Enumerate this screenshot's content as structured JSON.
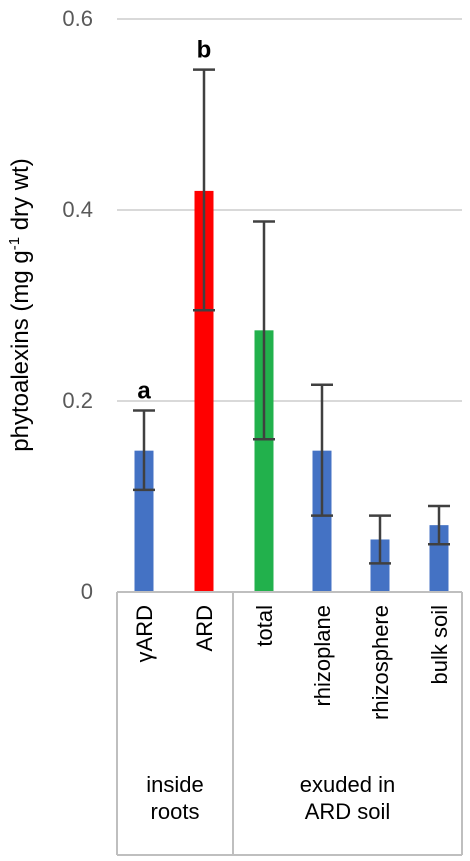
{
  "chart_data": {
    "type": "bar",
    "ylabel": {
      "main": "phytoalexins   (mg g",
      "sup": "-1",
      "tail": " dry wt)"
    },
    "ylim": [
      0,
      0.6
    ],
    "yticks": [
      "0",
      "0.2",
      "0.4",
      "0.6"
    ],
    "grid": true,
    "categories": [
      "γARD",
      "ARD",
      "total",
      "rhizoplane",
      "rhizosphere",
      "bulk soil"
    ],
    "values": [
      0.148,
      0.42,
      0.274,
      0.148,
      0.055,
      0.07
    ],
    "error_high": [
      0.19,
      0.547,
      0.388,
      0.217,
      0.08,
      0.09
    ],
    "error_low": [
      0.107,
      0.295,
      0.16,
      0.08,
      0.03,
      0.05
    ],
    "bar_colors": [
      "#4472c4",
      "#ff0000",
      "#22b14c",
      "#4472c4",
      "#4472c4",
      "#4472c4"
    ],
    "significance": [
      "a",
      "b",
      "",
      "",
      "",
      ""
    ],
    "groups": [
      {
        "lines": [
          "inside",
          "roots"
        ],
        "span": [
          0,
          1
        ]
      },
      {
        "lines": [
          "exuded in",
          "ARD soil"
        ],
        "span": [
          2,
          5
        ]
      }
    ]
  }
}
